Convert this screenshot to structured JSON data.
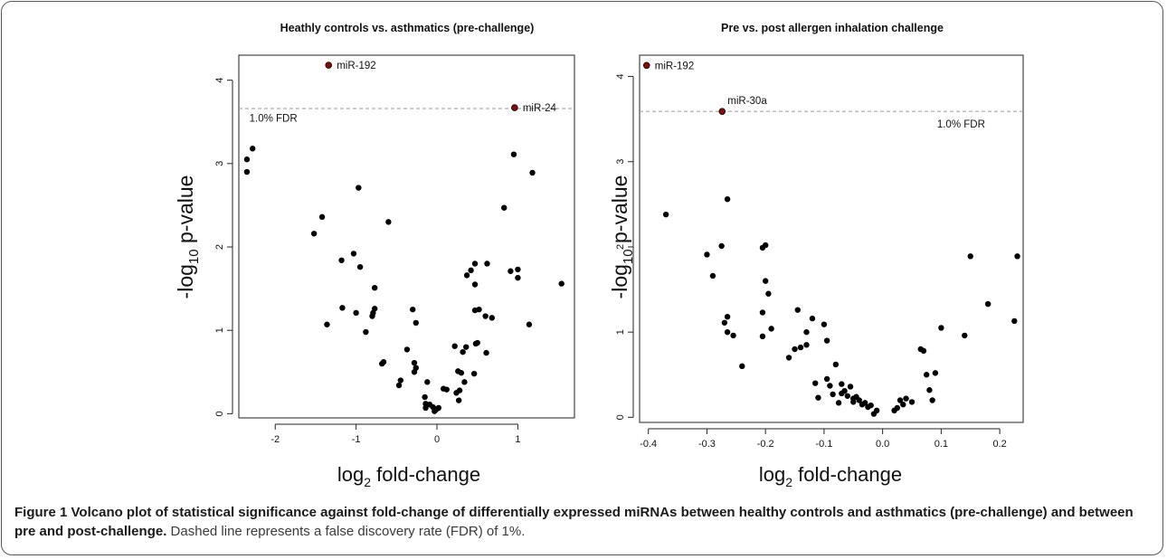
{
  "caption": {
    "label": "Figure 1",
    "title": "Volcano plot of statistical significance against fold-change of differentially expressed miRNAs between healthy controls and asthmatics (pre-challenge) and between pre and post-challenge.",
    "text": "Dashed line represents a false discovery rate (FDR) of 1%."
  },
  "chart_data": [
    {
      "type": "scatter",
      "title": "Heathly controls vs. asthmatics (pre-challenge)",
      "xlabel_main": "log",
      "xlabel_sub": "2",
      "xlabel_rest": " fold-change",
      "ylabel_main": "-log",
      "ylabel_sub": "10",
      "ylabel_rest": " p-value",
      "xlim": [
        -2.45,
        1.7
      ],
      "ylim": [
        -0.05,
        4.3
      ],
      "xticks": [
        "-2",
        "-1",
        "0",
        "1"
      ],
      "yticks": [
        "0",
        "1",
        "2",
        "3",
        "4"
      ],
      "fdr_line": {
        "y": 3.66,
        "label": "1.0% FDR",
        "label_x": -2.32,
        "label_y": 3.5
      },
      "highlight_color": "#7a1010",
      "highlights": [
        {
          "name": "miR-192",
          "x": -1.34,
          "y": 4.18
        },
        {
          "name": "miR-24",
          "x": 0.96,
          "y": 3.67
        }
      ],
      "points": [
        [
          -2.35,
          2.9
        ],
        [
          -2.35,
          3.05
        ],
        [
          -2.28,
          3.18
        ],
        [
          -1.52,
          2.16
        ],
        [
          -1.42,
          2.36
        ],
        [
          -1.36,
          1.07
        ],
        [
          -1.18,
          1.84
        ],
        [
          -1.17,
          1.27
        ],
        [
          -1.03,
          1.92
        ],
        [
          -1.0,
          1.21
        ],
        [
          -0.97,
          2.71
        ],
        [
          -0.95,
          1.76
        ],
        [
          -0.88,
          0.98
        ],
        [
          -0.8,
          1.17
        ],
        [
          -0.79,
          1.21
        ],
        [
          -0.77,
          1.26
        ],
        [
          -0.77,
          1.51
        ],
        [
          -0.68,
          0.6
        ],
        [
          -0.66,
          0.62
        ],
        [
          -0.6,
          2.3
        ],
        [
          -0.47,
          0.34
        ],
        [
          -0.45,
          0.4
        ],
        [
          -0.37,
          0.77
        ],
        [
          -0.3,
          1.25
        ],
        [
          -0.28,
          0.5
        ],
        [
          -0.28,
          0.61
        ],
        [
          -0.26,
          0.55
        ],
        [
          -0.26,
          1.09
        ],
        [
          -0.15,
          0.2
        ],
        [
          -0.14,
          0.12
        ],
        [
          -0.14,
          0.07
        ],
        [
          -0.12,
          0.38
        ],
        [
          -0.09,
          0.11
        ],
        [
          -0.05,
          0.08
        ],
        [
          -0.03,
          0.03
        ],
        [
          -0.01,
          0.05
        ],
        [
          0.02,
          0.07
        ],
        [
          0.08,
          0.3
        ],
        [
          0.12,
          0.29
        ],
        [
          0.22,
          0.81
        ],
        [
          0.24,
          0.25
        ],
        [
          0.26,
          0.51
        ],
        [
          0.27,
          0.16
        ],
        [
          0.28,
          0.28
        ],
        [
          0.3,
          0.49
        ],
        [
          0.32,
          0.74
        ],
        [
          0.34,
          0.38
        ],
        [
          0.36,
          0.8
        ],
        [
          0.37,
          1.66
        ],
        [
          0.42,
          1.72
        ],
        [
          0.46,
          0.48
        ],
        [
          0.47,
          1.8
        ],
        [
          0.47,
          1.24
        ],
        [
          0.47,
          1.55
        ],
        [
          0.48,
          0.84
        ],
        [
          0.5,
          0.85
        ],
        [
          0.52,
          1.25
        ],
        [
          0.6,
          1.17
        ],
        [
          0.61,
          0.73
        ],
        [
          0.62,
          1.8
        ],
        [
          0.68,
          1.15
        ],
        [
          0.83,
          2.47
        ],
        [
          0.91,
          1.71
        ],
        [
          0.95,
          3.11
        ],
        [
          1.0,
          1.73
        ],
        [
          1.0,
          1.63
        ],
        [
          1.14,
          1.07
        ],
        [
          1.18,
          2.89
        ],
        [
          1.54,
          1.56
        ]
      ]
    },
    {
      "type": "scatter",
      "title": "Pre vs. post allergen inhalation challenge",
      "xlabel_main": "log",
      "xlabel_sub": "2",
      "xlabel_rest": " fold-change",
      "ylabel_main": "-log",
      "ylabel_sub": "10",
      "ylabel_rest": " p-value",
      "xlim": [
        -0.415,
        0.24
      ],
      "ylim": [
        -0.06,
        4.25
      ],
      "xticks": [
        "-0.4",
        "-0.3",
        "-0.2",
        "-0.1",
        "0.0",
        "0.1",
        "0.2"
      ],
      "yticks": [
        "0",
        "1",
        "2",
        "3",
        "4"
      ],
      "fdr_line": {
        "y": 3.59,
        "label": "1.0% FDR",
        "label_x": 0.093,
        "label_y": 3.4
      },
      "highlight_color": "#7a1010",
      "highlights": [
        {
          "name": "miR-192",
          "x": -0.403,
          "y": 4.13
        },
        {
          "name": "miR-30a",
          "x": -0.274,
          "y": 3.59
        }
      ],
      "points": [
        [
          -0.37,
          2.38
        ],
        [
          -0.3,
          1.91
        ],
        [
          -0.29,
          1.66
        ],
        [
          -0.275,
          2.01
        ],
        [
          -0.27,
          1.11
        ],
        [
          -0.265,
          2.56
        ],
        [
          -0.265,
          1.18
        ],
        [
          -0.265,
          1.0
        ],
        [
          -0.255,
          0.96
        ],
        [
          -0.24,
          0.6
        ],
        [
          -0.205,
          1.99
        ],
        [
          -0.2,
          2.02
        ],
        [
          -0.205,
          1.23
        ],
        [
          -0.205,
          0.95
        ],
        [
          -0.2,
          1.6
        ],
        [
          -0.195,
          1.45
        ],
        [
          -0.19,
          1.04
        ],
        [
          -0.16,
          0.7
        ],
        [
          -0.15,
          0.8
        ],
        [
          -0.145,
          1.26
        ],
        [
          -0.14,
          0.82
        ],
        [
          -0.13,
          1.0
        ],
        [
          -0.13,
          0.85
        ],
        [
          -0.12,
          1.16
        ],
        [
          -0.115,
          0.4
        ],
        [
          -0.11,
          0.23
        ],
        [
          -0.1,
          1.09
        ],
        [
          -0.095,
          0.9
        ],
        [
          -0.095,
          0.45
        ],
        [
          -0.09,
          0.37
        ],
        [
          -0.085,
          0.27
        ],
        [
          -0.08,
          0.62
        ],
        [
          -0.075,
          0.17
        ],
        [
          -0.07,
          0.39
        ],
        [
          -0.07,
          0.28
        ],
        [
          -0.065,
          0.31
        ],
        [
          -0.06,
          0.25
        ],
        [
          -0.055,
          0.36
        ],
        [
          -0.05,
          0.22
        ],
        [
          -0.05,
          0.18
        ],
        [
          -0.045,
          0.24
        ],
        [
          -0.04,
          0.2
        ],
        [
          -0.035,
          0.15
        ],
        [
          -0.03,
          0.17
        ],
        [
          -0.025,
          0.12
        ],
        [
          -0.02,
          0.14
        ],
        [
          -0.015,
          0.04
        ],
        [
          -0.01,
          0.08
        ],
        [
          0.02,
          0.08
        ],
        [
          0.025,
          0.11
        ],
        [
          0.03,
          0.2
        ],
        [
          0.035,
          0.15
        ],
        [
          0.04,
          0.22
        ],
        [
          0.05,
          0.18
        ],
        [
          0.065,
          0.8
        ],
        [
          0.07,
          0.78
        ],
        [
          0.075,
          0.5
        ],
        [
          0.08,
          0.32
        ],
        [
          0.085,
          0.2
        ],
        [
          0.09,
          0.52
        ],
        [
          0.1,
          1.05
        ],
        [
          0.14,
          0.96
        ],
        [
          0.15,
          1.89
        ],
        [
          0.18,
          1.33
        ],
        [
          0.225,
          1.13
        ],
        [
          0.23,
          1.89
        ]
      ]
    }
  ]
}
